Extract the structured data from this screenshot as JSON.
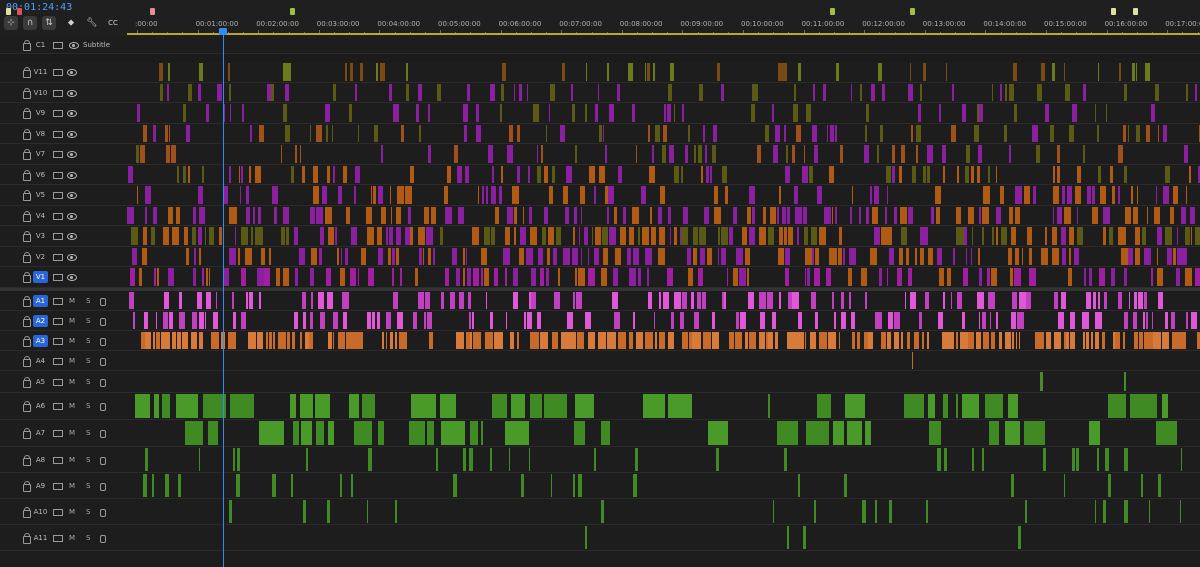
{
  "timeline": {
    "timecode": "00:01:24:43",
    "cc_label": "CC",
    "subtitle_label": "Subtitle",
    "mute_label": "M",
    "solo_label": "S",
    "ruler_labels": [
      ":00:00",
      "00:01:00:00",
      "00:02:00:00",
      "00:03:00:00",
      "00:04:00:00",
      "00:05:00:00",
      "00:06:00:00",
      "00:07:00:00",
      "00:08:00:00",
      "00:09:00:00",
      "00:10:00:00",
      "00:11:00:00",
      "00:12:00:00",
      "00:13:00:00",
      "00:14:00:00",
      "00:15:00:00",
      "00:16:00:00",
      "00:17:00:00"
    ],
    "playhead_seconds": 84.7,
    "tracks": {
      "caption": [
        {
          "name": "C1"
        }
      ],
      "video": [
        {
          "name": "V11",
          "selected": false,
          "colors": [
            "#6b7a1a",
            "#7a4a14"
          ],
          "density": 0.3
        },
        {
          "name": "V10",
          "selected": false,
          "colors": [
            "#8a1fa0",
            "#5a5a14"
          ],
          "density": 0.35
        },
        {
          "name": "V9",
          "selected": false,
          "colors": [
            "#8a1fa0",
            "#5a5a14"
          ],
          "density": 0.35
        },
        {
          "name": "V8",
          "selected": false,
          "colors": [
            "#8a1fa0",
            "#5a5a14",
            "#a0501a"
          ],
          "density": 0.4
        },
        {
          "name": "V7",
          "selected": false,
          "colors": [
            "#8a1fa0",
            "#a0501a",
            "#5a5a14"
          ],
          "density": 0.4
        },
        {
          "name": "V6",
          "selected": false,
          "colors": [
            "#8a1fa0",
            "#b05a14",
            "#5a5a14"
          ],
          "density": 0.45
        },
        {
          "name": "V5",
          "selected": false,
          "colors": [
            "#8a1fa0",
            "#b05a14"
          ],
          "density": 0.5
        },
        {
          "name": "V4",
          "selected": false,
          "colors": [
            "#8a1fa0",
            "#b05a14"
          ],
          "density": 0.55
        },
        {
          "name": "V3",
          "selected": false,
          "colors": [
            "#b05a14",
            "#8a1fa0",
            "#5a5a14"
          ],
          "density": 0.7
        },
        {
          "name": "V2",
          "selected": false,
          "colors": [
            "#b05a14",
            "#8a1fa0"
          ],
          "density": 0.65
        },
        {
          "name": "V1",
          "selected": true,
          "colors": [
            "#a01fa0",
            "#8a1fa0",
            "#b05a14"
          ],
          "density": 0.6
        }
      ],
      "audio": [
        {
          "name": "A1",
          "selected": true,
          "colors": [
            "#e058d8",
            "#c040c0"
          ],
          "density": 0.55
        },
        {
          "name": "A2",
          "selected": true,
          "colors": [
            "#e058d8",
            "#c040c0"
          ],
          "density": 0.55
        },
        {
          "name": "A3",
          "selected": true,
          "colors": [
            "#d87a3a",
            "#c86a2a"
          ],
          "density": 0.85
        },
        {
          "name": "A4",
          "selected": false,
          "colors": [
            "#c86a2a"
          ],
          "density": 0.02
        },
        {
          "name": "A5",
          "selected": false,
          "colors": [
            "#4a8a2a"
          ],
          "density": 0.01
        },
        {
          "name": "A6",
          "selected": false,
          "colors": [
            "#3f8a22",
            "#4a9a2a"
          ],
          "density": 0.45
        },
        {
          "name": "A7",
          "selected": false,
          "colors": [
            "#3f8a22",
            "#4a9a2a"
          ],
          "density": 0.45
        },
        {
          "name": "A8",
          "selected": false,
          "colors": [
            "#3f8a22"
          ],
          "density": 0.18
        },
        {
          "name": "A9",
          "selected": false,
          "colors": [
            "#3f8a22"
          ],
          "density": 0.16
        },
        {
          "name": "A10",
          "selected": false,
          "colors": [
            "#3f8a22"
          ],
          "density": 0.15
        },
        {
          "name": "A11",
          "selected": false,
          "colors": [
            "#3f8a22"
          ],
          "density": 0.05
        }
      ]
    },
    "marker_colors": [
      "#e0e0a0",
      "#e05050",
      "#e09090",
      "#a0c040",
      "#a0c040",
      "#a0c040",
      "#e0e0a0",
      "#e0e0a0"
    ]
  }
}
